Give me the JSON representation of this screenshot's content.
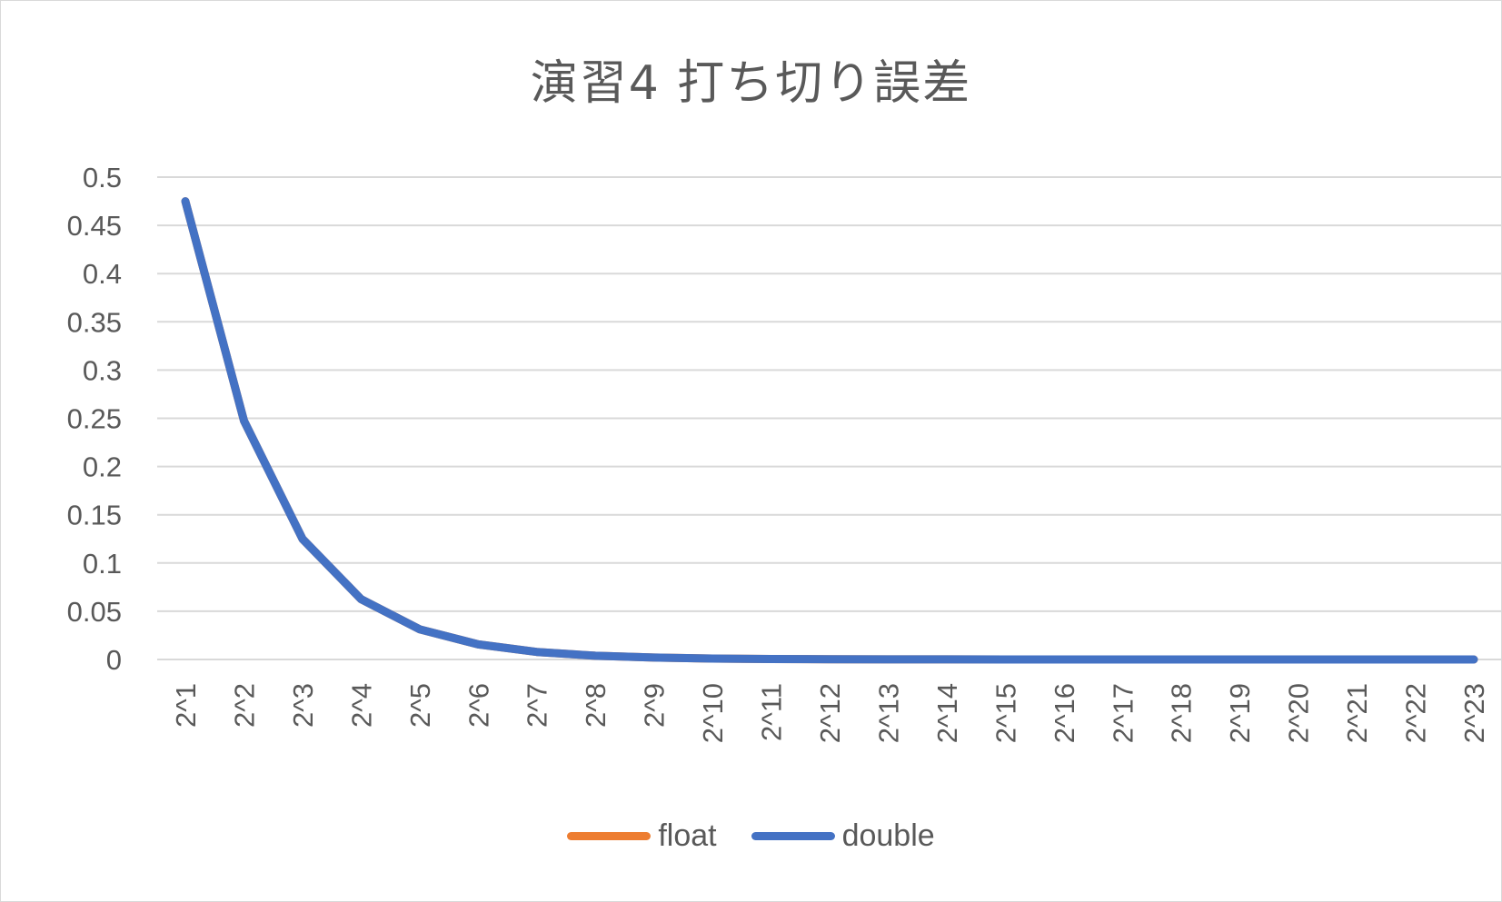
{
  "chart_data": {
    "type": "line",
    "title": "演習4 打ち切り誤差",
    "categories": [
      "2^1",
      "2^2",
      "2^3",
      "2^4",
      "2^5",
      "2^6",
      "2^7",
      "2^8",
      "2^9",
      "2^10",
      "2^11",
      "2^12",
      "2^13",
      "2^14",
      "2^15",
      "2^16",
      "2^17",
      "2^18",
      "2^19",
      "2^20",
      "2^21",
      "2^22",
      "2^23"
    ],
    "series": [
      {
        "name": "float",
        "color": "#ed7d31",
        "values": [
          0.475,
          0.2475,
          0.125,
          0.0625,
          0.03125,
          0.015625,
          0.0078125,
          0.00390625,
          0.001953125,
          0.0009765625,
          0.00048828125,
          0.000244140625,
          0.0001220703125,
          6.103515625e-05,
          3.0517578125e-05,
          1.52587890625e-05,
          7.62939453125e-06,
          3.814697265625e-06,
          1.9073486328125e-06,
          9.5367431640625e-07,
          4.76837158203125e-07,
          2.384185791015625e-07,
          1.1920928955078125e-07
        ]
      },
      {
        "name": "double",
        "color": "#4472c4",
        "values": [
          0.475,
          0.2475,
          0.125,
          0.0625,
          0.03125,
          0.015625,
          0.0078125,
          0.00390625,
          0.001953125,
          0.0009765625,
          0.00048828125,
          0.000244140625,
          0.0001220703125,
          6.103515625e-05,
          3.0517578125e-05,
          1.52587890625e-05,
          7.62939453125e-06,
          3.814697265625e-06,
          1.9073486328125e-06,
          9.5367431640625e-07,
          4.76837158203125e-07,
          2.384185791015625e-07,
          1.1920928955078125e-07
        ]
      }
    ],
    "ylim": [
      0,
      0.5
    ],
    "yticks": [
      "0",
      "0.05",
      "0.1",
      "0.15",
      "0.2",
      "0.25",
      "0.3",
      "0.35",
      "0.4",
      "0.45",
      "0.5"
    ],
    "grid": true,
    "legend_position": "bottom"
  }
}
